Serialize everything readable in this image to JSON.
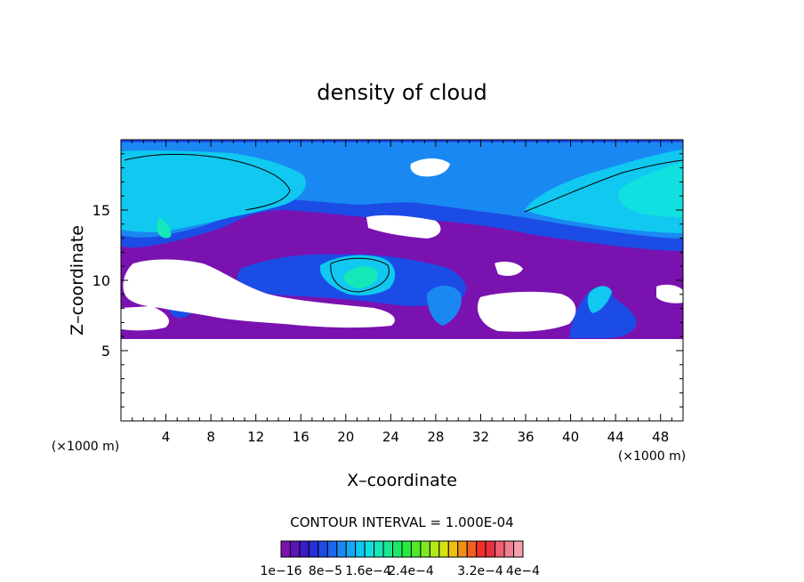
{
  "chart_data": {
    "type": "heatmap",
    "title": "density of cloud",
    "xlabel": "X–coordinate",
    "ylabel": "Z–coordinate",
    "x_unit_left": "(×1000 m)",
    "x_unit_right": "(×1000 m)",
    "xlim": [
      0,
      50
    ],
    "ylim": [
      0,
      20
    ],
    "x_ticks": [
      4,
      8,
      12,
      16,
      20,
      24,
      28,
      32,
      36,
      40,
      44,
      48
    ],
    "y_ticks": [
      5,
      10,
      15
    ],
    "contour_interval_label": "CONTOUR INTERVAL = 1.000E-04",
    "colorbar": {
      "colors": [
        "#7a12b0",
        "#5a14b8",
        "#3a1cc4",
        "#2430d8",
        "#1c4ce6",
        "#1a68ee",
        "#1a88f2",
        "#14a8f4",
        "#10c8f0",
        "#10e0e0",
        "#14e8b8",
        "#18e890",
        "#1ce868",
        "#28e840",
        "#50e828",
        "#80e820",
        "#b0e818",
        "#d8e010",
        "#f0c010",
        "#f09018",
        "#f06020",
        "#f03028",
        "#e83040",
        "#f06070",
        "#f08090",
        "#f4a0a8"
      ],
      "tick_labels": [
        "1e−16",
        "8e−5",
        "1.6e−4",
        "2.4e−4",
        "3.2e−4",
        "4e−4"
      ]
    },
    "grid": false
  }
}
